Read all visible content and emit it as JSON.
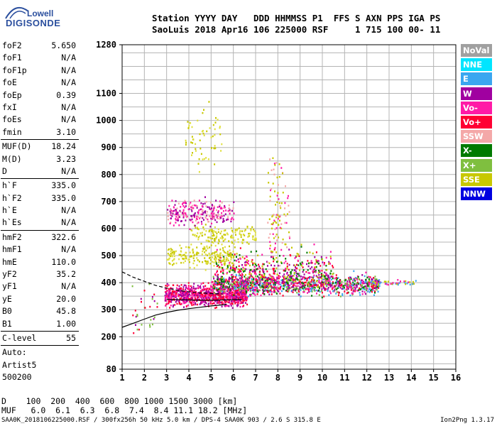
{
  "logo": {
    "line1": "Lowell",
    "line2": "DIGISONDE"
  },
  "header": {
    "line1": "Station YYYY DAY   DDD HHMMSS P1  FFS S AXN PPS IGA PS",
    "line2": "SaoLuis 2018 Apr16 106 225000 RSF     1 715 100 00- 11"
  },
  "params_group1": [
    {
      "label": "foF2",
      "value": "5.650"
    },
    {
      "label": "foF1",
      "value": "N/A"
    },
    {
      "label": "foF1p",
      "value": "N/A"
    },
    {
      "label": "foE",
      "value": "N/A"
    },
    {
      "label": "foEp",
      "value": "0.39"
    },
    {
      "label": "fxI",
      "value": "N/A"
    },
    {
      "label": "foEs",
      "value": "N/A"
    },
    {
      "label": "fmin",
      "value": "3.10"
    }
  ],
  "params_group2": [
    {
      "label": "MUF(D)",
      "value": "18.24"
    },
    {
      "label": "M(D)",
      "value": "3.23"
    },
    {
      "label": "D",
      "value": "N/A"
    }
  ],
  "params_group3": [
    {
      "label": "h`F",
      "value": "335.0"
    },
    {
      "label": "h`F2",
      "value": "335.0"
    },
    {
      "label": "h`E",
      "value": "N/A"
    },
    {
      "label": "h`Es",
      "value": "N/A"
    }
  ],
  "params_group4": [
    {
      "label": "hmF2",
      "value": "322.6"
    },
    {
      "label": "hmF1",
      "value": "N/A"
    },
    {
      "label": "hmE",
      "value": "110.0"
    },
    {
      "label": "yF2",
      "value": "35.2"
    },
    {
      "label": "yF1",
      "value": "N/A"
    },
    {
      "label": "yE",
      "value": "20.0"
    },
    {
      "label": "B0",
      "value": "45.8"
    },
    {
      "label": "B1",
      "value": "1.00"
    }
  ],
  "clevel": {
    "label": "C-level",
    "value": "55"
  },
  "auto": [
    "Auto:",
    "Artist5",
    "500200"
  ],
  "legend": [
    {
      "label": "NoVal",
      "color": "#a0a0a0"
    },
    {
      "label": "NNE",
      "color": "#00e5ff"
    },
    {
      "label": "E",
      "color": "#3aa6f0"
    },
    {
      "label": "W",
      "color": "#a000a0"
    },
    {
      "label": "Vo-",
      "color": "#ff1aa6"
    },
    {
      "label": "Vo+",
      "color": "#ff0033"
    },
    {
      "label": "SSW",
      "color": "#f4a8a8"
    },
    {
      "label": "X-",
      "color": "#007a00"
    },
    {
      "label": "X+",
      "color": "#7fbf3f"
    },
    {
      "label": "SSE",
      "color": "#c8c800"
    },
    {
      "label": "NNW",
      "color": "#0000e0"
    }
  ],
  "dmuf": {
    "d_line": "D    100  200  400  600  800 1000 1500 3000 [km]",
    "muf_line": "MUF   6.0  6.1  6.3  6.8  7.4  8.4 11.1 18.2 [MHz]"
  },
  "footer": {
    "left": "SAA0K_2018106225000.RSF / 300fx256h 50 kHz 5.0 km / DPS-4 SAA0K 903 / 2.6 S 315.8 E",
    "right": "Ion2Png 1.3.17"
  },
  "chart_data": {
    "type": "scatter",
    "x_ticks": [
      "1",
      "2",
      "3",
      "4",
      "5",
      "6",
      "7",
      "8",
      "9",
      "10",
      "11",
      "12",
      "13",
      "14",
      "15",
      "16"
    ],
    "y_ticks": [
      {
        "value": 80,
        "label": "80"
      },
      {
        "value": 200,
        "label": "200"
      },
      {
        "value": 300,
        "label": "300"
      },
      {
        "value": 400,
        "label": "400"
      },
      {
        "value": 500,
        "label": "500"
      },
      {
        "value": 600,
        "label": "600"
      },
      {
        "value": 700,
        "label": "700"
      },
      {
        "value": 800,
        "label": "800"
      },
      {
        "value": 900,
        "label": "900"
      },
      {
        "value": 1000,
        "label": "1000"
      },
      {
        "value": 1100,
        "label": "1100"
      },
      {
        "value": 1280,
        "label": "1280"
      }
    ],
    "xlim": [
      1,
      16
    ],
    "ylim": [
      80,
      1280
    ],
    "grid": true,
    "curves": [
      {
        "style": "dashed",
        "points": [
          [
            1.0,
            440
          ],
          [
            1.5,
            420
          ],
          [
            2.0,
            405
          ],
          [
            2.5,
            390
          ],
          [
            3.0,
            380
          ],
          [
            3.5,
            372
          ],
          [
            4.0,
            366
          ],
          [
            4.5,
            362
          ],
          [
            5.0,
            360
          ],
          [
            5.5,
            358
          ]
        ]
      },
      {
        "style": "solid",
        "points": [
          [
            1.0,
            235
          ],
          [
            1.5,
            250
          ],
          [
            2.0,
            265
          ],
          [
            2.5,
            280
          ],
          [
            3.0,
            290
          ],
          [
            3.5,
            298
          ],
          [
            4.0,
            304
          ],
          [
            4.5,
            309
          ],
          [
            5.0,
            314
          ],
          [
            5.5,
            318
          ],
          [
            5.7,
            320
          ]
        ]
      },
      {
        "style": "solid",
        "points": [
          [
            3.0,
            338
          ],
          [
            3.5,
            337
          ],
          [
            4.0,
            336
          ],
          [
            4.5,
            335
          ],
          [
            5.0,
            335
          ],
          [
            5.5,
            336
          ],
          [
            6.0,
            337
          ],
          [
            6.4,
            338
          ]
        ]
      }
    ],
    "echo_clusters": [
      {
        "x_range": [
          2.9,
          6.6
        ],
        "y_center": 355,
        "y_spread": 30,
        "count": 900,
        "colors": [
          "#ff1aa6",
          "#ff0033",
          "#a000a0"
        ]
      },
      {
        "x_range": [
          5.0,
          12.5
        ],
        "y_center": 395,
        "y_spread": 30,
        "count": 1100,
        "colors": [
          "#ff1aa6",
          "#ff0033",
          "#a000a0",
          "#3aa6f0",
          "#007a00",
          "#7fbf3f"
        ]
      },
      {
        "x_range": [
          5.2,
          10.5
        ],
        "y_center": 450,
        "y_spread": 60,
        "count": 500,
        "colors": [
          "#ff1aa6",
          "#ff0033",
          "#a000a0",
          "#007a00",
          "#c8c800"
        ]
      },
      {
        "x_range": [
          3.0,
          6.0
        ],
        "y_center": 500,
        "y_spread": 30,
        "count": 200,
        "colors": [
          "#c8c800",
          "#e0e040"
        ]
      },
      {
        "x_range": [
          4.0,
          7.0
        ],
        "y_center": 580,
        "y_spread": 30,
        "count": 150,
        "colors": [
          "#c8c800",
          "#e0e040"
        ]
      },
      {
        "x_range": [
          3.0,
          6.0
        ],
        "y_center": 660,
        "y_spread": 40,
        "count": 250,
        "colors": [
          "#a000a0",
          "#ff1aa6",
          "#f4a8a8"
        ]
      },
      {
        "x_range": [
          7.5,
          8.5
        ],
        "y_center": 650,
        "y_spread": 150,
        "count": 100,
        "colors": [
          "#c8c800",
          "#f4a8a8",
          "#ff1aa6"
        ]
      },
      {
        "x_range": [
          3.8,
          5.5
        ],
        "y_center": 950,
        "y_spread": 100,
        "count": 60,
        "colors": [
          "#c8c800",
          "#e0e040"
        ]
      },
      {
        "x_range": [
          12.0,
          14.2
        ],
        "y_center": 402,
        "y_spread": 8,
        "count": 60,
        "colors": [
          "#c8c800",
          "#ff1aa6",
          "#3aa6f0"
        ]
      },
      {
        "x_range": [
          1.4,
          2.6
        ],
        "y_center": 300,
        "y_spread": 80,
        "count": 30,
        "colors": [
          "#ff0033",
          "#a000a0",
          "#7fbf3f"
        ]
      }
    ]
  }
}
